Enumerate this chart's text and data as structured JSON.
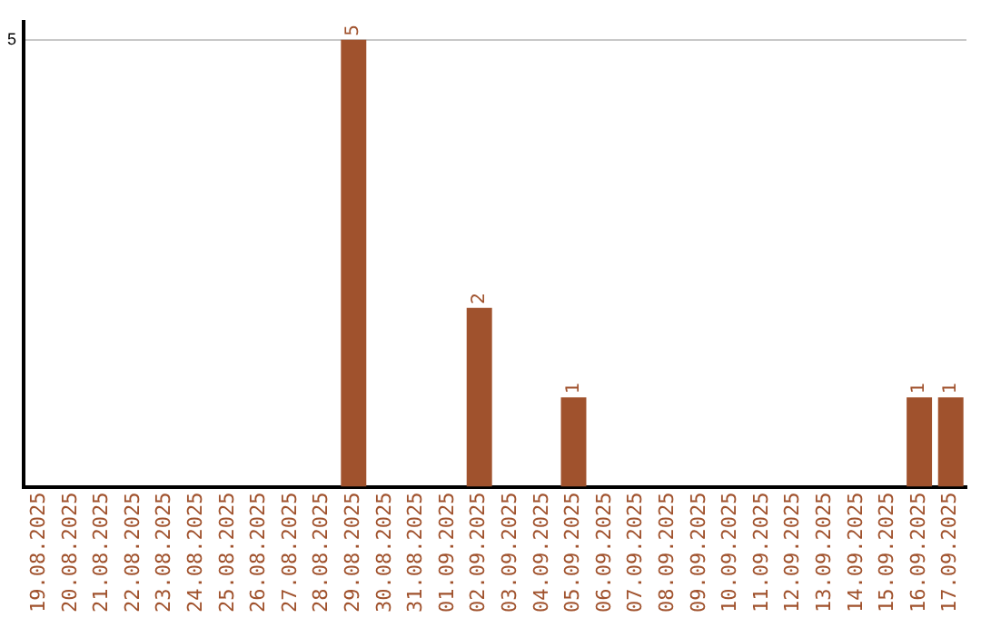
{
  "chart_data": {
    "type": "bar",
    "categories": [
      "19.08.2025",
      "20.08.2025",
      "21.08.2025",
      "22.08.2025",
      "23.08.2025",
      "24.08.2025",
      "25.08.2025",
      "26.08.2025",
      "27.08.2025",
      "28.08.2025",
      "29.08.2025",
      "30.08.2025",
      "31.08.2025",
      "01.09.2025",
      "02.09.2025",
      "03.09.2025",
      "04.09.2025",
      "05.09.2025",
      "06.09.2025",
      "07.09.2025",
      "08.09.2025",
      "09.09.2025",
      "10.09.2025",
      "11.09.2025",
      "12.09.2025",
      "13.09.2025",
      "14.09.2025",
      "15.09.2025",
      "16.09.2025",
      "17.09.2025"
    ],
    "values": [
      0,
      0,
      0,
      0,
      0,
      0,
      0,
      0,
      0,
      0,
      5,
      0,
      0,
      0,
      2,
      0,
      0,
      1,
      0,
      0,
      0,
      0,
      0,
      0,
      0,
      0,
      0,
      0,
      1,
      1
    ],
    "value_labels": [
      null,
      null,
      null,
      null,
      null,
      null,
      null,
      null,
      null,
      null,
      "5",
      null,
      null,
      null,
      "2",
      null,
      null,
      "1",
      null,
      null,
      null,
      null,
      null,
      null,
      null,
      null,
      null,
      null,
      "1",
      "1"
    ],
    "color": "#a0522d",
    "ylim": [
      0,
      5.2
    ],
    "yticks": [
      5
    ],
    "grid": "y"
  }
}
